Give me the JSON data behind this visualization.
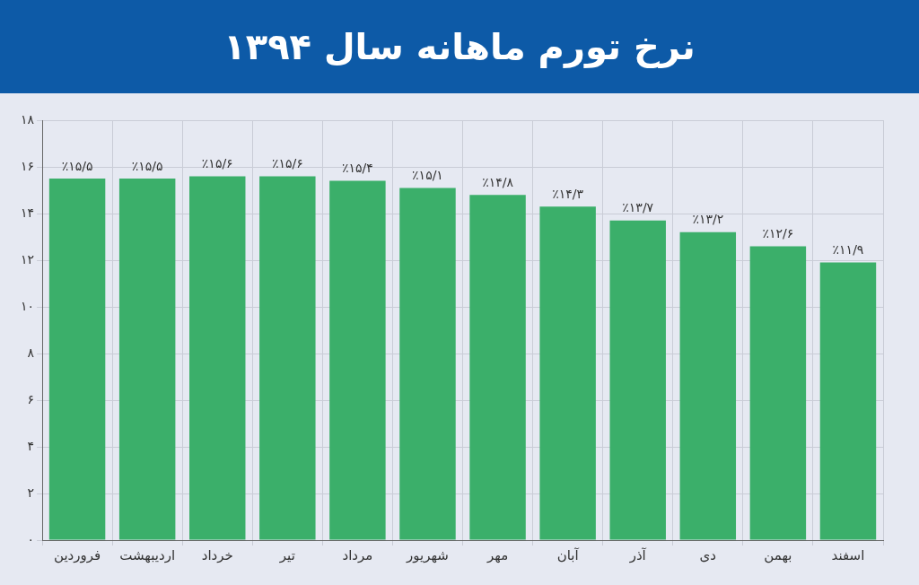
{
  "chart_data": {
    "type": "bar",
    "title": "نرخ تورم ماهانه سال ۱۳۹۴",
    "categories": [
      "فروردین",
      "اردیبهشت",
      "خرداد",
      "تیر",
      "مرداد",
      "شهریور",
      "مهر",
      "آبان",
      "آذر",
      "دی",
      "بهمن",
      "اسفند"
    ],
    "values": [
      15.5,
      15.5,
      15.6,
      15.6,
      15.4,
      15.1,
      14.8,
      14.3,
      13.7,
      13.2,
      12.6,
      11.9
    ],
    "value_labels": [
      "٪۱۵/۵",
      "٪۱۵/۵",
      "٪۱۵/۶",
      "٪۱۵/۶",
      "٪۱۵/۴",
      "٪۱۵/۱",
      "٪۱۴/۸",
      "٪۱۴/۳",
      "٪۱۳/۷",
      "٪۱۳/۲",
      "٪۱۲/۶",
      "٪۱۱/۹"
    ],
    "color": "#3baf6a",
    "ylim": [
      0,
      18
    ],
    "yticks": [
      {
        "value": 0,
        "label": "۰"
      },
      {
        "value": 2,
        "label": "۲"
      },
      {
        "value": 4,
        "label": "۴"
      },
      {
        "value": 6,
        "label": "۶"
      },
      {
        "value": 8,
        "label": "۸"
      },
      {
        "value": 10,
        "label": "۱۰"
      },
      {
        "value": 12,
        "label": "۱۲"
      },
      {
        "value": 14,
        "label": "۱۴"
      },
      {
        "value": 16,
        "label": "۱۶"
      },
      {
        "value": 18,
        "label": "۱۸"
      }
    ],
    "grid": true
  }
}
